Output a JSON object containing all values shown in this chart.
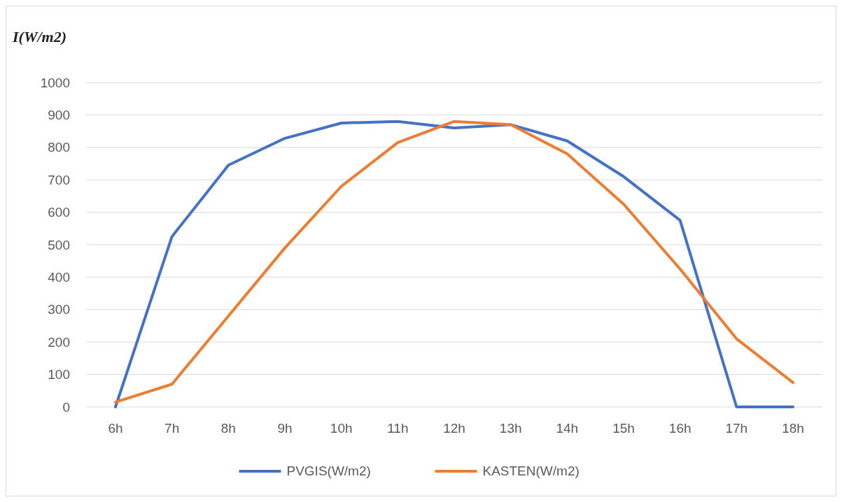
{
  "chart_data": {
    "type": "line",
    "ylabel": "I(W/m2)",
    "categories": [
      "6h",
      "7h",
      "8h",
      "9h",
      "10h",
      "11h",
      "12h",
      "13h",
      "14h",
      "15h",
      "16h",
      "17h",
      "18h"
    ],
    "series": [
      {
        "name": "PVGIS(W/m2)",
        "color": "#4472c4",
        "values": [
          0,
          525,
          745,
          828,
          875,
          880,
          860,
          870,
          820,
          710,
          575,
          0,
          0
        ]
      },
      {
        "name": "KASTEN(W/m2)",
        "color": "#ed7d31",
        "values": [
          15,
          70,
          280,
          490,
          680,
          815,
          880,
          870,
          780,
          625,
          425,
          210,
          75
        ]
      }
    ],
    "ylim": [
      0,
      1000
    ],
    "yticks": [
      0,
      100,
      200,
      300,
      400,
      500,
      600,
      700,
      800,
      900,
      1000
    ],
    "grid": "y",
    "legend": "bottom",
    "marker": "none",
    "line_style": "solid"
  }
}
